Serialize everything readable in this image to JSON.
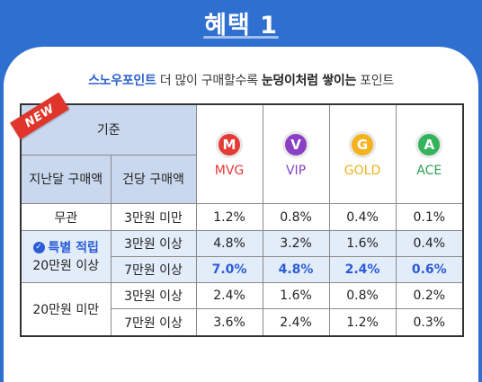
{
  "title": "혜택 1",
  "subtitle": {
    "part1": "스노우포인트",
    "part2": " 더 많이 구매할수록 ",
    "part3": "눈덩이처럼 쌓이는",
    "part4": " 포인트"
  },
  "ribbon": "NEW",
  "header": {
    "criteria": "기준",
    "last_month": "지난달 구매액",
    "per_purchase": "건당 구매액"
  },
  "grades": [
    {
      "letter": "M",
      "name": "MVG",
      "color": "#e53b35",
      "text_color": "#e53b35"
    },
    {
      "letter": "V",
      "name": "VIP",
      "color": "#8a3fc4",
      "text_color": "#8a3fc4"
    },
    {
      "letter": "G",
      "name": "GOLD",
      "color": "#f4b21f",
      "text_color": "#f0b21b"
    },
    {
      "letter": "A",
      "name": "ACE",
      "color": "#33b35a",
      "text_color": "#2f9e52"
    }
  ],
  "rows": [
    {
      "group": "무관",
      "per": "3만원 미만",
      "vals": [
        "1.2%",
        "0.8%",
        "0.4%",
        "0.1%"
      ]
    },
    {
      "group_special": "특별 적립",
      "group": "20만원 이상",
      "per": "3만원 이상",
      "vals": [
        "4.8%",
        "3.2%",
        "1.6%",
        "0.4%"
      ]
    },
    {
      "per": "7만원 이상",
      "vals": [
        "7.0%",
        "4.8%",
        "2.4%",
        "0.6%"
      ]
    },
    {
      "group": "20만원 미만",
      "per": "3만원 이상",
      "vals": [
        "2.4%",
        "1.6%",
        "0.8%",
        "0.2%"
      ]
    },
    {
      "per": "7만원 이상",
      "vals": [
        "3.6%",
        "2.4%",
        "1.2%",
        "0.3%"
      ]
    }
  ]
}
